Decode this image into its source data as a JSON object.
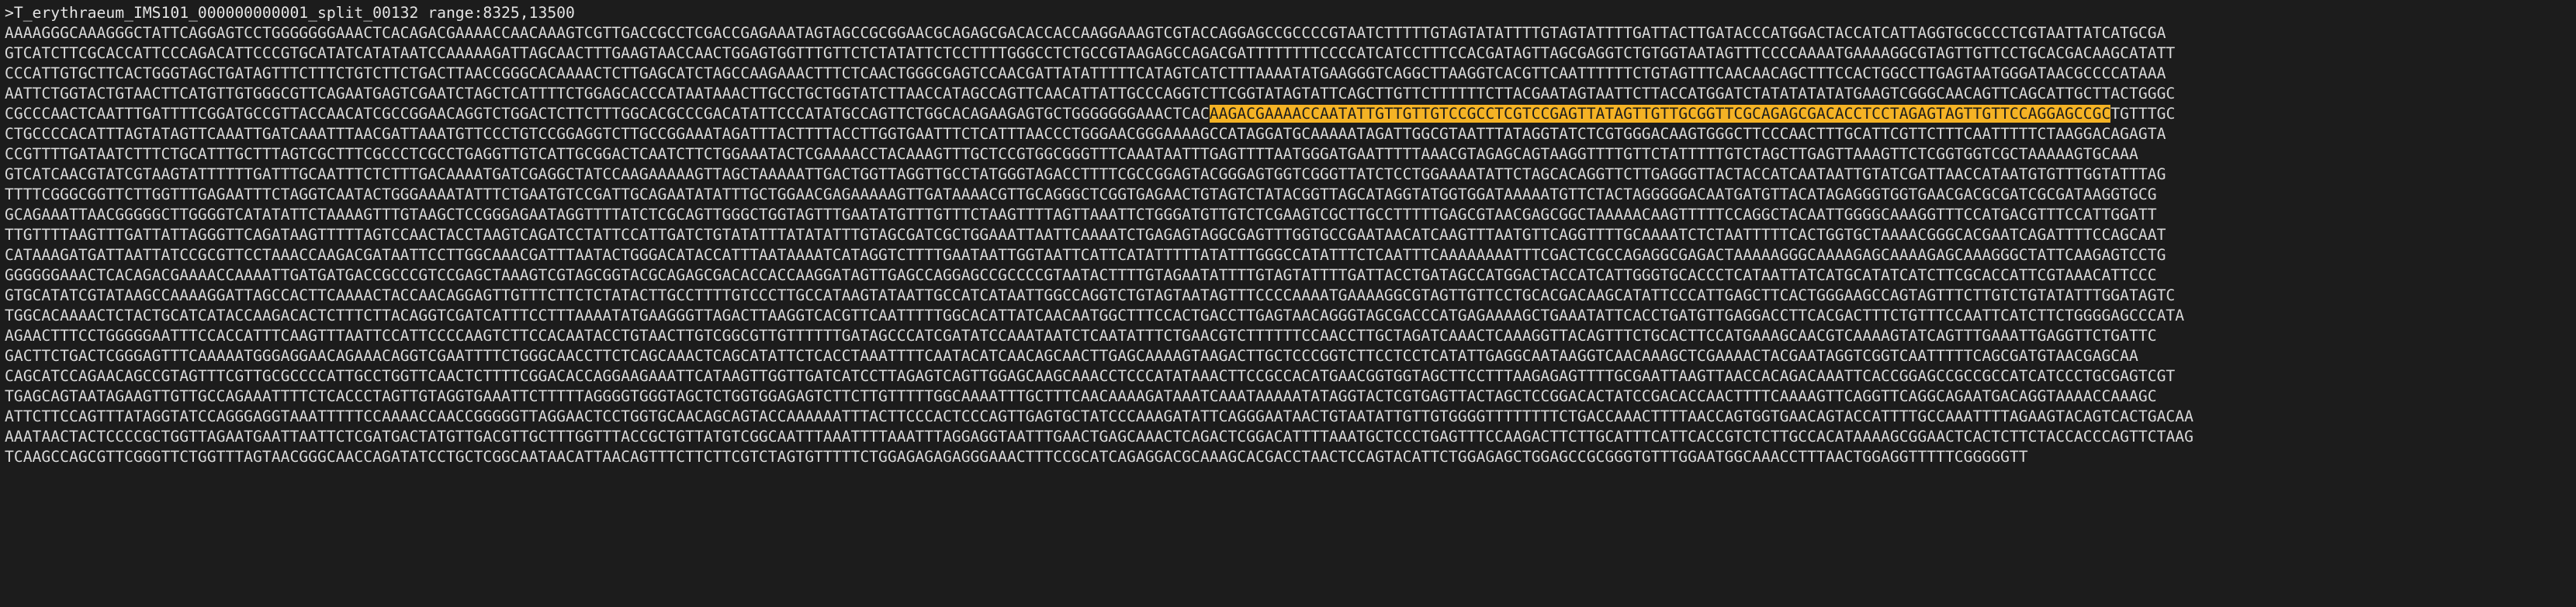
{
  "header": ">T_erythraeum_IMS101_000000000001_split_00132 range:8325,13500",
  "highlight_color": "#f5b325",
  "text_color": "#dadada",
  "background_color": "#1c1c1c",
  "lines": [
    {
      "before": "AAAAGGGCAAAGGGCTATTCAGGAGTCCTGGGGGGGAAACTCACAGACGAAAACCAACAAAGTCGTTGACCGCCTCGACCGAGAAATAGTAGCCGCGGAACGCAGAGCGACACCACCAAGGAAAGTCGTACCAGGAGCCGCCCCGTAATCTTTTTGTAGTATATTTTGTAGTATTTTGATTACTTGATACCCATGGACTACCATCATTAGGTGCGCCCTCGTAATTATCATGCGA",
      "mark": "",
      "after": ""
    },
    {
      "before": "GTCATCTTCGCACCATTCCCAGACATTCCCGTGCATATCATATAATCCAAAAAGATTAGCAACTTTGAAGTAACCAACTGGAGTGGTTTGTTCTCTATATTCTCCTTTTGGGCCTCTGCCGTAAGAGCCAGACGATTTTTTTTCCCCATCATCCTTTCCACGATAGTTAGCGAGGTCTGTGGTAATAGTTTCCCCAAAATGAAAAGGCGTAGTTGTTCCTGCACGACAAGCATATT",
      "mark": "",
      "after": ""
    },
    {
      "before": "CCCATTGTGCTTCACTGGGTAGCTGATAGTTTCTTTCTGTCTTCTGACTTAACCGGGCACAAAACTCTTGAGCATCTAGCCAAGAAACTTTCTCAACTGGGCGAGTCCAACGATTATATTTTTCATAGTCATCTTTAAAATATGAAGGGTCAGGCTTAAGGTCACGTTCAATTTTTTCTGTAGTTTCAACAACAGCTTTCCACTGGCCTTGAGTAATGGGATAACGCCCCATAAA",
      "mark": "",
      "after": ""
    },
    {
      "before": "AATTCTGGTACTGTAACTTCATGTTGTGGGCGTTCAGAATGAGTCGAATCTAGCTCATTTTCTGGAGCACCCATAATAAACTTGCCTGCTGGTATCTTAACCATAGCCAGTTCAACATTATTGCCCAGGTCTTCGGTATAGTATTCAGCTTGTTCTTTTTTCTTACGAATAGTAATTCTTACCATGGATCTATATATATATGAAGTCGGGCAACAGTTCAGCATTGCTTACTGGGC",
      "mark": "",
      "after": ""
    },
    {
      "before": "CGCCCAACTCAATTTGATTTTCGGATGCCGTTACCAACATCGCCGGAACAGGTCTGGACTCTTCTTTGGCACGCCCGACATATTCCCATATGCCAGTTCTGGCACAGAAGAGTGCTGGGGGGGAAACTCAC",
      "mark": "AAGACGAAAACCAATATTGTTGTTGTCCGCCTCGTCCGAGTTATAGTTGTTGCGGTTCGCAGAGCGACACCTCCTAGAGTAGTTGTTCCAGGAGCCGC",
      "after": "TGTTTGC"
    },
    {
      "before": "CTGCCCCACATTTAGTATAGTTCAAATTGATCAAATTTAACGATTAAATGTTCCCTGTCCGGAGGTCTTGCCGGAAATAGATTTACTTTTACCTTGGTGAATTTCTCATTTAACCCTGGGAACGGGAAAAGCCATAGGATGCAAAAATAGATTGGCGTAATTTATAGGTATCTCGTGGGACAAGTGGGCTTCCCAACTTTGCATTCGTTCTTTCAATTTTTCTAAGGACAGAGTA",
      "mark": "",
      "after": ""
    },
    {
      "before": "CCGTTTTGATAATCTTTCTGCATTTGCTTTAGTCGCTTTCGCCCTCGCCTGAGGTTGTCATTGCGGACTCAATCTTCTGGAAATACTCGAAAACCTACAAAGTTTGCTCCGTGGCGGGTTTCAAATAATTTGAGTTTTAATGGGATGAATTTTTAAACGTAGAGCAGTAAGGTTTTGTTCTATTTTTGTCTAGCTTGAGTTAAAGTTCTCGGTGGTCGCTAAAAAGTGCAAA",
      "mark": "",
      "after": ""
    },
    {
      "before": "GTCATCAACGTATCGTAAGTATTTTTTGATTTGCAATTTCTCTTTGACAAAATGATCGAGGCTATCCAAGAAAAAGTTAGCTAAAAATTGACTGGTTAGGTTGCCTATGGGTAGACCTTTTCGCCGGAGTACGGGAGTGGTCGGGTTATCTCCTGGAAAATATTCTAGCACAGGTTCTTGAGGGTTACTACCATCAATAATTGTATCGATTAACCATAATGTGTTTGGTATTTAG",
      "mark": "",
      "after": ""
    },
    {
      "before": "TTTTCGGGCGGTTCTTGGTTTGAGAATTTCTAGGTCAATACTGGGAAAATATTTCTGAATGTCCGATTGCAGAATATATTTGCTGGAACGAGAAAAAGTTGATAAAACGTTGCAGGGCTCGGTGAGAACTGTAGTCTATACGGTTAGCATAGGTATGGTGGATAAAAATGTTCTACTAGGGGGACAATGATGTTACATAGAGGGTGGTGAACGACGCGATCGCGATAAGGTGCG",
      "mark": "",
      "after": ""
    },
    {
      "before": "GCAGAAATTAACGGGGGCTTGGGGTCATATATTCTAAAAGTTTGTAAGCTCCGGGAGAATAGGTTTTATCTCGCAGTTGGGCTGGTAGTTTGAATATGTTTGTTTCTAAGTTTTAGTTAAATTCTGGGATGTTGTCTCGAAGTCGCTTGCCTTTTTGAGCGTAACGAGCGGCTAAAAACAAGTTTTTCCAGGCTACAATTGGGGCAAAGGTTTCCATGACGTTTCCATTGGATT",
      "mark": "",
      "after": ""
    },
    {
      "before": "TTGTTTTAAGTTTGATTATTAGGGTTCAGATAAGTTTTTAGTCCAACTACCTAAGTCAGATCCTATTCCATTGATCTGTATATTTATATATTTGTAGCGATCGCTGGAAATTAATTCAAAATCTGAGAGTAGGCGAGTTTGGTGCCGAATAACATCAAGTTTAATGTTCAGGTTTTGCAAAATCTCTAATTTTTCACTGGTGCTAAAACGGGCACGAATCAGATTTTCCAGCAAT",
      "mark": "",
      "after": ""
    },
    {
      "before": "CATAAAGATGATTAATTATCCGCGTTCCTAAACCAAGACGATAATTCCTTGGCAAACGATTTAATACTGGGACATACCATTTAATAAAATCATAGGTCTTTTGAATAATTGGTAATTCATTCATATTTTTATATTTGGGCCATATTTCTCAATTTCAAAAAAAATTTCGACTCGCCAGAGGCGAGACTAAAAAGGGCAAAAGAGCAAAAGAGCAAAGGGCTATTCAAGAGTCCTG",
      "mark": "",
      "after": ""
    },
    {
      "before": "GGGGGGAAACTCACAGACGAAAACCAAAATTGATGATGACCGCCCGTCCGAGCTAAAGTCGTAGCGGTACGCAGAGCGACACCACCAAGGATAGTTGAGCCAGGAGCCGCCCCGTAATACTTTTGTAGAATATTTTGTAGTATTTTGATTACCTGATAGCCATGGACTACCATCATTGGGTGCACCCTCATAATTATCATGCATATCATCTTCGCACCATTCGTAAACATTCCC",
      "mark": "",
      "after": ""
    },
    {
      "before": "GTGCATATCGTATAAGCCAAAAGGATTAGCCACTTCAAAACTACCAACAGGAGTTGTTTCTTCTCTATACTTGCCTTTTGTCCCTTGCCATAAGTATAATTGCCATCATAATTGGCCAGGTCTGTAGTAATAGTTTCCCCAAAATGAAAAGGCGTAGTTGTTCCTGCACGACAAGCATATTCCCATTGAGCTTCACTGGGAAGCCAGTAGTTTCTTGTCTGTATATTTGGATAGTC",
      "mark": "",
      "after": ""
    },
    {
      "before": "TGGCACAAAACTCTACTGCATCATACCAAGACACTCTTTCTTACAGGTCGATCATTTCCTTTAAAATATGAAGGGTTAGACTTAAGGTCACGTTCAATTTTTGGCACATTATCAACAATGGCTTTCCACTGACCTTGAGTAACAGGGTAGCGACCCATGAGAAAAGCTGAAATATTCACCTGATGTTGAGGACCTTCACGACTTTCTGTTTCCAATTCATCTTCTGGGGAGCCCATA",
      "mark": "",
      "after": ""
    },
    {
      "before": "AGAACTTTCCTGGGGGAATTTCCACCATTTCAAGTTTAATTCCATTCCCCAAGTCTTCCACAATACCTGTAACTTGTCGGCGTTGTTTTTTGATAGCCCATCGATATCCAAATAATCTCAATATTTCTGAACGTCTTTTTTCCAACCTTGCTAGATCAAACTCAAAGGTTACAGTTTCTGCACTTCCATGAAAGCAACGTCAAAAGTATCAGTTTGAAATTGAGGTTCTGATTC",
      "mark": "",
      "after": ""
    },
    {
      "before": "GACTTCTGACTCGGGAGTTTCAAAAATGGGAGGAACAGAAACAGGTCGAATTTTCTGGGCAACCTTCTCAGCAAACTCAGCATATTCTCACCTAAATTTTCAATACATCAACAGCAACTTGAGCAAAAGTAAGACTTGCTCCCGGTCTTCCTCCTCATATTGAGGCAATAAGGTCAACAAAGCTCGAAAACTACGAATAGGTCGGTCAATTTTTCAGCGATGTAACGAGCAA",
      "mark": "",
      "after": ""
    },
    {
      "before": "CAGCATCCAGAACAGCCGTAGTTTCGTTGCGCCCCATTGCCTGGTTCAACTCTTTTCGGACACCAGGAAGAAATTCATAAGTTGGTTGATCATCCTTAGAGTCAGTTGGAGCAAGCAAACCTCCCATATAAACTTCCGCCACATGAACGGTGGTAGCTTCCTTTAAGAGAGTTTTGCGAATTAAGTTAACCACAGACAAATTCACCGGAGCCGCCGCCATCATCCCTGCGAGTCGT",
      "mark": "",
      "after": ""
    },
    {
      "before": "TGAGCAGTAATAGAAGTTGTTGCCAGAAATTTTCTCACCCTAGTTGTAGGTGAAATTCTTTTTAGGGGTGGGTAGCTCTGGTGGAGAGTCTTCTTGTTTTTGGCAAAATTTGCTTTCAACAAAAGATAAATCAAATAAAAATATAGGTACTCGTGAGTTACTAGCTCCGGACACTATCCGACACCAACTTTTCAAAAGTTCAGGTTCAGGCAGAATGACAGGTAAAACCAAAGC",
      "mark": "",
      "after": ""
    },
    {
      "before": "ATTCTTCCAGTTTATAGGTATCCAGGGAGGTAAATTTTTCCAAAACCAACCGGGGGTTAGGAACTCCTGGTGCAACAGCAGTACCAAAAAATTTACTTCCCACTCCCAGTTGAGTGCTATCCCAAAGATATTCAGGGAATAACTGTAATATTGTTGTGGGGTTTTTTTTCTGACCAAACTTTTAACCAGTGGTGAACAGTACCATTTTGCCAAATTTTAGAAGTACAGTCACTGACAA",
      "mark": "",
      "after": ""
    },
    {
      "before": "AAATAACTACTCCCCGCTGGTTAGAATGAATTAATTCTCGATGACTATGTTGACGTTGCTTTGGTTTACCGCTGTTATGTCGGCAATTTAAATTTTAAATTTAGGAGGTAATTTGAACTGAGCAAACTCAGACTCGGACATTTTAAATGCTCCCTGAGTTTCCAAGACTTCTTGCATTTCATTCACCGTCTCTTGCCACATAAAAGCGGAACTCACTCTTCTACCACCCAGTTCTAAG",
      "mark": "",
      "after": ""
    },
    {
      "before": "TCAAGCCAGCGTTCGGGTTCTGGTTTAGTAACGGGCAACCAGATATCCTGCTCGGCAATAACATTAACAGTTTCTTCTTCGTCTAGTGTTTTTCTGGAGAGAGAGGGAAACTTTCCGCATCAGAGGACGCAAAGCACGACCTAACTCCAGTACATTCTGGAGAGCTGGAGCCGCGGGTGTTTGGAATGGCAAACCTTTAACTGGAGGTTTTTCGGGGGTT",
      "mark": "",
      "after": ""
    }
  ]
}
